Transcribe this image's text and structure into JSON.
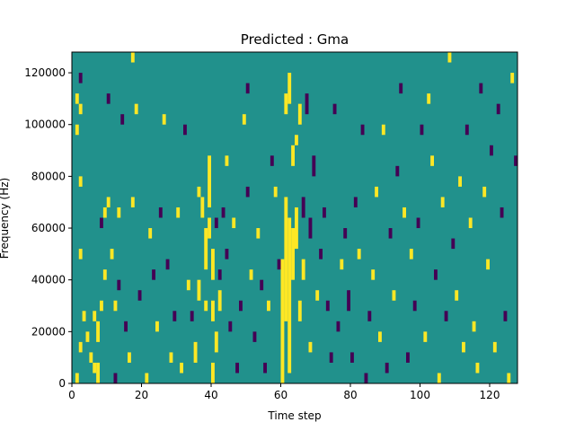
{
  "chart_data": {
    "type": "heatmap",
    "title": "Predicted : Gma",
    "xlabel": "Time step",
    "ylabel": "Frequency (Hz)",
    "xlim": [
      0,
      128
    ],
    "ylim": [
      0,
      128000
    ],
    "x_ticks": [
      0,
      20,
      40,
      60,
      80,
      100,
      120
    ],
    "x_tick_labels": [
      "0",
      "20",
      "40",
      "60",
      "80",
      "100",
      "120"
    ],
    "y_ticks": [
      0,
      20000,
      40000,
      60000,
      80000,
      100000,
      120000
    ],
    "y_tick_labels": [
      "0",
      "20000",
      "40000",
      "60000",
      "80000",
      "100000",
      "120000"
    ],
    "grid": false,
    "colormap": "viridis",
    "value_levels": [
      -1,
      0,
      1
    ],
    "colors": {
      "-1": "#440154",
      "0": "#21918c",
      "1": "#fde725"
    },
    "background_value": 0,
    "cells_note_format": "[time_step, freq_bin_start_Hz, freq_bin_end_Hz, value]",
    "bin_height_hz": 4000,
    "cells": [
      [
        1,
        0,
        4000,
        1
      ],
      [
        2,
        12000,
        16000,
        1
      ],
      [
        3,
        24000,
        28000,
        1
      ],
      [
        2,
        48000,
        52000,
        1
      ],
      [
        1,
        96000,
        100000,
        1
      ],
      [
        2,
        76000,
        80000,
        1
      ],
      [
        1,
        108000,
        112000,
        1
      ],
      [
        2,
        104000,
        108000,
        1
      ],
      [
        2,
        116000,
        120000,
        -1
      ],
      [
        4,
        16000,
        20000,
        1
      ],
      [
        5,
        8000,
        12000,
        1
      ],
      [
        6,
        4000,
        8000,
        1
      ],
      [
        6,
        24000,
        28000,
        1
      ],
      [
        7,
        0,
        8000,
        1
      ],
      [
        7,
        16000,
        24000,
        1
      ],
      [
        8,
        28000,
        32000,
        1
      ],
      [
        8,
        60000,
        64000,
        -1
      ],
      [
        9,
        40000,
        44000,
        1
      ],
      [
        9,
        64000,
        68000,
        1
      ],
      [
        10,
        68000,
        72000,
        1
      ],
      [
        10,
        108000,
        112000,
        -1
      ],
      [
        11,
        48000,
        52000,
        1
      ],
      [
        12,
        28000,
        32000,
        1
      ],
      [
        12,
        0,
        4000,
        -1
      ],
      [
        13,
        36000,
        40000,
        -1
      ],
      [
        13,
        64000,
        68000,
        1
      ],
      [
        14,
        100000,
        104000,
        -1
      ],
      [
        15,
        20000,
        24000,
        -1
      ],
      [
        16,
        8000,
        12000,
        1
      ],
      [
        17,
        68000,
        72000,
        1
      ],
      [
        17,
        124000,
        128000,
        1
      ],
      [
        18,
        104000,
        108000,
        1
      ],
      [
        19,
        32000,
        36000,
        -1
      ],
      [
        21,
        0,
        4000,
        1
      ],
      [
        22,
        56000,
        60000,
        1
      ],
      [
        23,
        40000,
        44000,
        -1
      ],
      [
        24,
        20000,
        24000,
        1
      ],
      [
        25,
        64000,
        68000,
        -1
      ],
      [
        26,
        100000,
        104000,
        1
      ],
      [
        27,
        44000,
        48000,
        -1
      ],
      [
        28,
        8000,
        12000,
        1
      ],
      [
        29,
        24000,
        28000,
        -1
      ],
      [
        30,
        64000,
        68000,
        1
      ],
      [
        31,
        4000,
        8000,
        1
      ],
      [
        32,
        96000,
        100000,
        -1
      ],
      [
        33,
        36000,
        40000,
        1
      ],
      [
        34,
        24000,
        28000,
        -1
      ],
      [
        35,
        8000,
        16000,
        1
      ],
      [
        36,
        32000,
        40000,
        1
      ],
      [
        36,
        72000,
        76000,
        1
      ],
      [
        37,
        64000,
        72000,
        1
      ],
      [
        38,
        44000,
        60000,
        1
      ],
      [
        38,
        28000,
        32000,
        1
      ],
      [
        39,
        68000,
        88000,
        1
      ],
      [
        39,
        56000,
        64000,
        1
      ],
      [
        40,
        40000,
        52000,
        1
      ],
      [
        40,
        24000,
        32000,
        1
      ],
      [
        40,
        0,
        8000,
        1
      ],
      [
        41,
        12000,
        20000,
        1
      ],
      [
        41,
        60000,
        64000,
        -1
      ],
      [
        42,
        28000,
        36000,
        1
      ],
      [
        42,
        40000,
        44000,
        -1
      ],
      [
        43,
        64000,
        68000,
        -1
      ],
      [
        44,
        84000,
        88000,
        1
      ],
      [
        44,
        48000,
        52000,
        -1
      ],
      [
        45,
        20000,
        24000,
        -1
      ],
      [
        46,
        60000,
        64000,
        1
      ],
      [
        47,
        4000,
        8000,
        -1
      ],
      [
        48,
        28000,
        32000,
        -1
      ],
      [
        49,
        100000,
        104000,
        1
      ],
      [
        50,
        72000,
        76000,
        -1
      ],
      [
        50,
        112000,
        116000,
        -1
      ],
      [
        51,
        40000,
        44000,
        1
      ],
      [
        52,
        16000,
        20000,
        -1
      ],
      [
        53,
        56000,
        60000,
        1
      ],
      [
        54,
        36000,
        40000,
        -1
      ],
      [
        55,
        4000,
        8000,
        -1
      ],
      [
        56,
        28000,
        32000,
        1
      ],
      [
        57,
        84000,
        88000,
        -1
      ],
      [
        58,
        72000,
        76000,
        1
      ],
      [
        59,
        44000,
        48000,
        -1
      ],
      [
        60,
        0,
        48000,
        1
      ],
      [
        61,
        24000,
        72000,
        1
      ],
      [
        62,
        4000,
        64000,
        1
      ],
      [
        63,
        40000,
        60000,
        1
      ],
      [
        61,
        104000,
        112000,
        1
      ],
      [
        62,
        108000,
        120000,
        1
      ],
      [
        63,
        84000,
        92000,
        1
      ],
      [
        64,
        52000,
        68000,
        1
      ],
      [
        64,
        92000,
        96000,
        1
      ],
      [
        65,
        24000,
        32000,
        1
      ],
      [
        65,
        100000,
        108000,
        1
      ],
      [
        66,
        40000,
        48000,
        1
      ],
      [
        66,
        64000,
        72000,
        -1
      ],
      [
        67,
        104000,
        112000,
        -1
      ],
      [
        68,
        56000,
        64000,
        -1
      ],
      [
        68,
        12000,
        16000,
        1
      ],
      [
        69,
        80000,
        88000,
        -1
      ],
      [
        70,
        32000,
        36000,
        1
      ],
      [
        71,
        48000,
        52000,
        -1
      ],
      [
        72,
        64000,
        68000,
        -1
      ],
      [
        73,
        28000,
        32000,
        -1
      ],
      [
        74,
        8000,
        12000,
        -1
      ],
      [
        75,
        104000,
        108000,
        -1
      ],
      [
        76,
        20000,
        24000,
        -1
      ],
      [
        77,
        44000,
        48000,
        1
      ],
      [
        78,
        56000,
        60000,
        -1
      ],
      [
        79,
        28000,
        36000,
        -1
      ],
      [
        80,
        8000,
        12000,
        -1
      ],
      [
        81,
        68000,
        72000,
        -1
      ],
      [
        82,
        48000,
        52000,
        1
      ],
      [
        83,
        96000,
        100000,
        -1
      ],
      [
        84,
        0,
        4000,
        -1
      ],
      [
        85,
        24000,
        28000,
        -1
      ],
      [
        86,
        40000,
        44000,
        1
      ],
      [
        87,
        72000,
        76000,
        1
      ],
      [
        88,
        16000,
        20000,
        1
      ],
      [
        89,
        96000,
        100000,
        1
      ],
      [
        90,
        4000,
        8000,
        -1
      ],
      [
        91,
        56000,
        60000,
        -1
      ],
      [
        92,
        32000,
        36000,
        1
      ],
      [
        93,
        80000,
        84000,
        -1
      ],
      [
        94,
        112000,
        116000,
        -1
      ],
      [
        95,
        64000,
        68000,
        1
      ],
      [
        96,
        8000,
        12000,
        -1
      ],
      [
        97,
        48000,
        52000,
        1
      ],
      [
        98,
        28000,
        32000,
        -1
      ],
      [
        99,
        60000,
        64000,
        -1
      ],
      [
        100,
        96000,
        100000,
        -1
      ],
      [
        101,
        16000,
        20000,
        1
      ],
      [
        102,
        108000,
        112000,
        1
      ],
      [
        103,
        84000,
        88000,
        1
      ],
      [
        104,
        40000,
        44000,
        -1
      ],
      [
        105,
        0,
        4000,
        1
      ],
      [
        106,
        68000,
        72000,
        1
      ],
      [
        107,
        24000,
        28000,
        -1
      ],
      [
        108,
        124000,
        128000,
        1
      ],
      [
        109,
        52000,
        56000,
        -1
      ],
      [
        110,
        32000,
        36000,
        1
      ],
      [
        111,
        76000,
        80000,
        1
      ],
      [
        112,
        12000,
        16000,
        1
      ],
      [
        113,
        96000,
        100000,
        -1
      ],
      [
        114,
        60000,
        64000,
        1
      ],
      [
        115,
        20000,
        24000,
        1
      ],
      [
        116,
        4000,
        8000,
        1
      ],
      [
        117,
        112000,
        116000,
        -1
      ],
      [
        118,
        72000,
        76000,
        1
      ],
      [
        119,
        44000,
        48000,
        1
      ],
      [
        120,
        88000,
        92000,
        -1
      ],
      [
        121,
        12000,
        16000,
        1
      ],
      [
        122,
        104000,
        108000,
        -1
      ],
      [
        123,
        64000,
        68000,
        -1
      ],
      [
        124,
        24000,
        28000,
        -1
      ],
      [
        125,
        0,
        4000,
        1
      ],
      [
        126,
        116000,
        120000,
        1
      ],
      [
        127,
        84000,
        88000,
        -1
      ]
    ]
  }
}
